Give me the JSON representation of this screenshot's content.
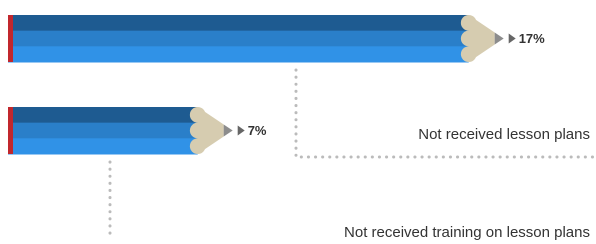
{
  "chart_data": {
    "type": "bar",
    "orientation": "horizontal",
    "categories": [
      "Not received lesson plans",
      "Not received training on lesson plans"
    ],
    "values": [
      17,
      7
    ],
    "value_labels": [
      "17%",
      "7%"
    ],
    "color": "#2a7fc9"
  }
}
